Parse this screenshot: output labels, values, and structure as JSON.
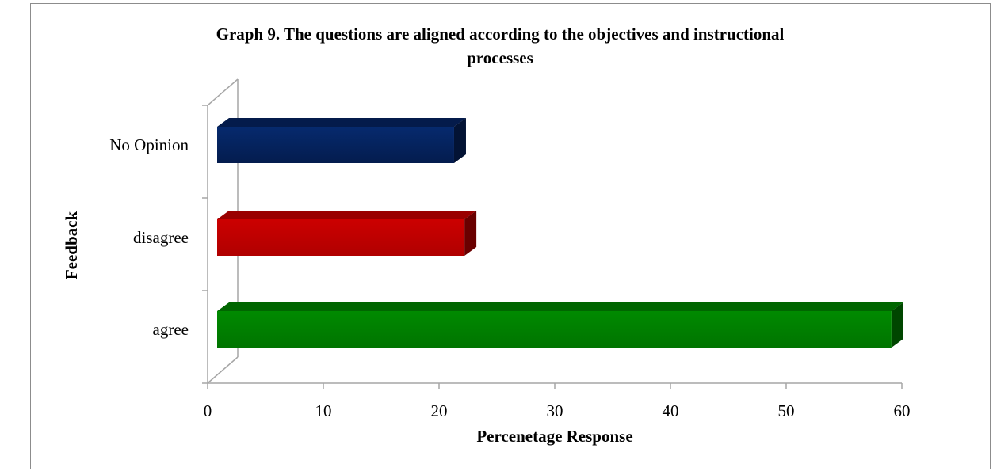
{
  "chart_data": {
    "type": "bar",
    "orientation": "horizontal",
    "style": "3d",
    "title": "Graph 9. The questions are aligned according to the objectives and instructional processes",
    "title_lines": [
      "Graph 9. The questions are aligned according to the objectives and instructional",
      "processes"
    ],
    "xlabel": "Percenetage Response",
    "ylabel": "Feedback",
    "xlim": [
      0,
      60
    ],
    "xticks": [
      "0",
      "10",
      "20",
      "30",
      "40",
      "50",
      "60"
    ],
    "categories": [
      "No Opinion",
      "disagree",
      "agree"
    ],
    "values": [
      21.3,
      22.2,
      59.1
    ],
    "colors": [
      "#05225e",
      "#c00000",
      "#008000"
    ],
    "grid": false,
    "legend": "none"
  }
}
